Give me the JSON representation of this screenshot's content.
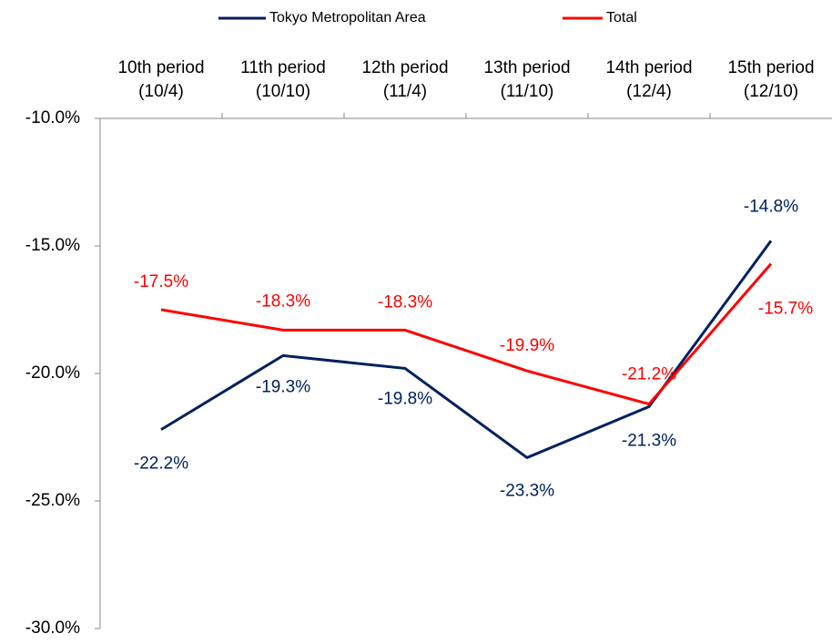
{
  "chart_data": {
    "type": "line",
    "categories": [
      "10th period\n(10/4)",
      "11th period\n(10/10)",
      "12th period\n(11/4)",
      "13th period\n(11/10)",
      "14th period\n(12/4)",
      "15th period\n(12/10)"
    ],
    "series": [
      {
        "name": "Tokyo Metropolitan Area",
        "color": "#002060",
        "values": [
          -22.2,
          -19.3,
          -19.8,
          -23.3,
          -21.3,
          -14.8
        ],
        "value_labels": [
          "-22.2%",
          "-19.3%",
          "-19.8%",
          "-23.3%",
          "-21.3%",
          "-14.8%"
        ]
      },
      {
        "name": "Total",
        "color": "#ff0000",
        "values": [
          -17.5,
          -18.3,
          -18.3,
          -19.9,
          -21.2,
          -15.7
        ],
        "value_labels": [
          "-17.5%",
          "-18.3%",
          "-18.3%",
          "-19.9%",
          "-21.2%",
          "-15.7%"
        ]
      }
    ],
    "ylim": [
      -30,
      -10
    ],
    "yticks": [
      {
        "value": -10,
        "label": "-10.0%"
      },
      {
        "value": -15,
        "label": "-15.0%"
      },
      {
        "value": -20,
        "label": "-20.0%"
      },
      {
        "value": -25,
        "label": "-25.0%"
      },
      {
        "value": -30,
        "label": "-30.0%"
      }
    ],
    "legend": "top"
  }
}
